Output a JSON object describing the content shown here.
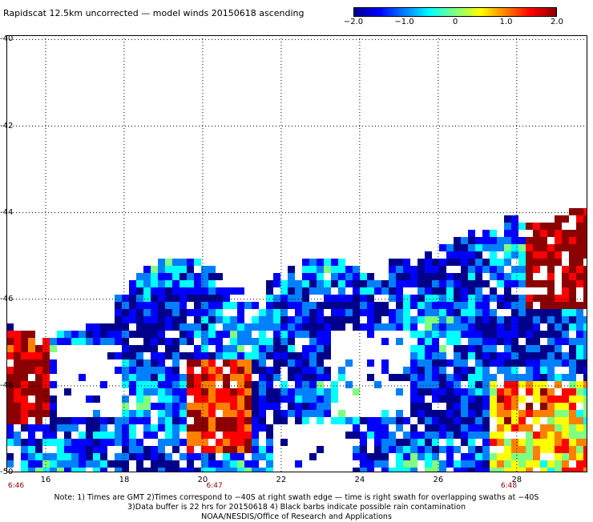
{
  "title": "Rapidscat 12.5km uncorrected — model winds 20150618 ascending",
  "colorbar": {
    "ticks": [
      "−2.0",
      "−1.0",
      "0",
      "1.0",
      "2.0"
    ],
    "tick_values": [
      -2.0,
      -1.0,
      0,
      1.0,
      2.0
    ],
    "range": [
      -2.0,
      2.0
    ],
    "colors": [
      "#00008b",
      "#0000ff",
      "#0080ff",
      "#00ffff",
      "#80ff80",
      "#ffff00",
      "#ff8000",
      "#ff0000",
      "#8b0000"
    ]
  },
  "lat_labels": [
    {
      "text": "-40",
      "value": -40
    },
    {
      "text": "-42",
      "value": -42
    },
    {
      "text": "-44",
      "value": -44
    },
    {
      "text": "-46",
      "value": -46
    },
    {
      "text": "-48",
      "value": -48
    },
    {
      "text": "-50",
      "value": -50
    }
  ],
  "lon_labels": [
    {
      "text": "16",
      "value": 16
    },
    {
      "text": "18",
      "value": 18
    },
    {
      "text": "20",
      "value": 20
    },
    {
      "text": "22",
      "value": 22
    },
    {
      "text": "24",
      "value": 24
    },
    {
      "text": "26",
      "value": 26
    },
    {
      "text": "28",
      "value": 28
    }
  ],
  "time_labels": [
    {
      "text": "6:46",
      "lon": 15.2
    },
    {
      "text": "6:47",
      "lon": 20.3
    },
    {
      "text": "6:48",
      "lon": 27.8
    }
  ],
  "map_extent": {
    "lon_min": 15.0,
    "lon_max": 29.8,
    "lat_min": -50.0,
    "lat_max": -39.9
  },
  "notes": [
    "Note: 1) Times are GMT 2)Times correspond to −40S at right swath edge — time is right swath for overlapping swaths at −40S",
    "3)Data buffer is 22 hrs for 20150618 4) Black barbs indicate possible rain contamination",
    "NOAA/NESDIS/Office of Research and Applications"
  ]
}
